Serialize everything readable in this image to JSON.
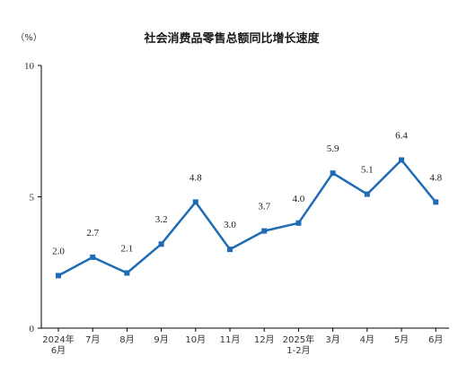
{
  "chart_data": {
    "type": "line",
    "title": "社会消费品零售总额同比增长速度",
    "unit": "（%）",
    "ylim": [
      0,
      10
    ],
    "yticks": [
      "0",
      "5",
      "10"
    ],
    "grid": false,
    "legend": "none",
    "line_color": "#1f6cb5",
    "categories": [
      [
        "2024年",
        "6月"
      ],
      [
        "7月"
      ],
      [
        "8月"
      ],
      [
        "9月"
      ],
      [
        "10月"
      ],
      [
        "11月"
      ],
      [
        "12月"
      ],
      [
        "2025年",
        "1-2月"
      ],
      [
        "3月"
      ],
      [
        "4月"
      ],
      [
        "5月"
      ],
      [
        "6月"
      ]
    ],
    "values": [
      2.0,
      2.7,
      2.1,
      3.2,
      4.8,
      3.0,
      3.7,
      4.0,
      5.9,
      5.1,
      6.4,
      4.8
    ],
    "data_labels": [
      "2.0",
      "2.7",
      "2.1",
      "3.2",
      "4.8",
      "3.0",
      "3.7",
      "4.0",
      "5.9",
      "5.1",
      "6.4",
      "4.8"
    ]
  }
}
